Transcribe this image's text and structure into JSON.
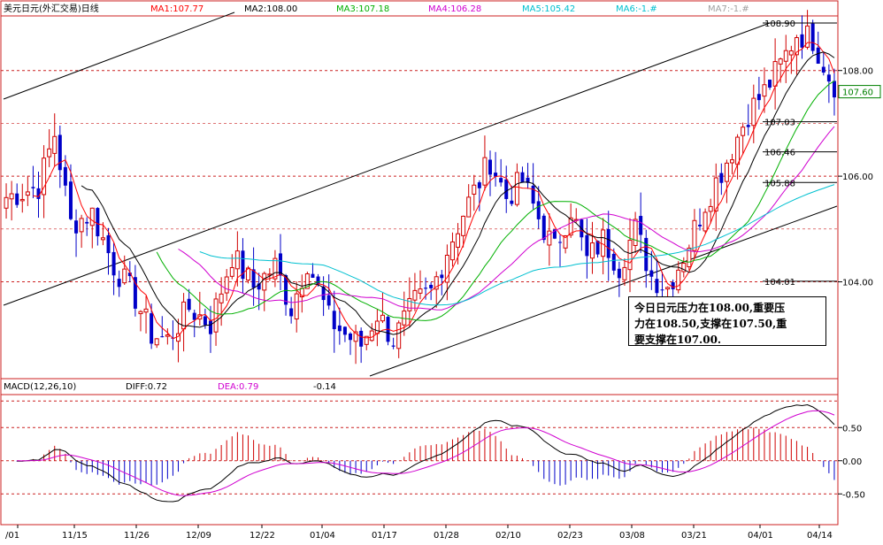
{
  "chart_data": [
    {
      "type": "candlestick",
      "title": "美元日元(外汇交易)日线",
      "indicators": [
        {
          "name": "MA1",
          "value": "107.77",
          "label": "MA1:107.77",
          "color": "#ff0000"
        },
        {
          "name": "MA2",
          "value": "108.00",
          "label": "MA2:108.00",
          "color": "#000000"
        },
        {
          "name": "MA3",
          "value": "107.18",
          "label": "MA3:107.18",
          "color": "#00b000"
        },
        {
          "name": "MA4",
          "value": "106.28",
          "label": "MA4:106.28",
          "color": "#d000d0"
        },
        {
          "name": "MA5",
          "value": "105.42",
          "label": "MA5:105.42",
          "color": "#00c0d0"
        },
        {
          "name": "MA6",
          "value": "-1.#",
          "label": "MA6:-1.#",
          "color": "#00c0d0"
        },
        {
          "name": "MA7",
          "value": "-1.#",
          "label": "MA7:-1.#",
          "color": "#a0a0a0"
        }
      ],
      "y_ticks": [
        "108.00",
        "106.00",
        "104.00"
      ],
      "y_tick_values": [
        108.0,
        106.0,
        104.0
      ],
      "current_price_label": "107.60",
      "current_price": 107.6,
      "price_annotations": [
        {
          "label": "108.90",
          "value": 108.9
        },
        {
          "label": "107.03",
          "value": 107.03
        },
        {
          "label": "106.46",
          "value": 106.46
        },
        {
          "label": "105.88",
          "value": 105.88
        },
        {
          "label": "104.01",
          "value": 104.01
        }
      ],
      "ylim": [
        102.2,
        109.0
      ],
      "x_tick_labels": [
        "/01",
        "11/15",
        "11/26",
        "12/09",
        "12/22",
        "01/04",
        "01/17",
        "01/28",
        "02/10",
        "02/23",
        "03/08",
        "03/21",
        "04/01",
        "04/14"
      ],
      "note": "今日日元压力在108.00,重要压力在108.50,支撑在107.50,重要支撑在107.00.",
      "note_lines": [
        "今日日元压力在108.00,重要压",
        "力在108.50,支撑在107.50,重",
        "要支撑在107.00."
      ],
      "up_color": "#d00000",
      "down_color": "#0000c8"
    },
    {
      "type": "macd",
      "title": "MACD(12,26,10)",
      "diff_label": "DIFF:0.72",
      "dea_label": "DEA:0.79",
      "macd_label": "-0.14",
      "diff": 0.72,
      "dea": 0.79,
      "macd": -0.14,
      "y_ticks": [
        "0.50",
        "0.00",
        "-0.50"
      ],
      "y_tick_values": [
        0.5,
        0.0,
        -0.5
      ],
      "ylim": [
        -0.95,
        0.97
      ]
    }
  ]
}
